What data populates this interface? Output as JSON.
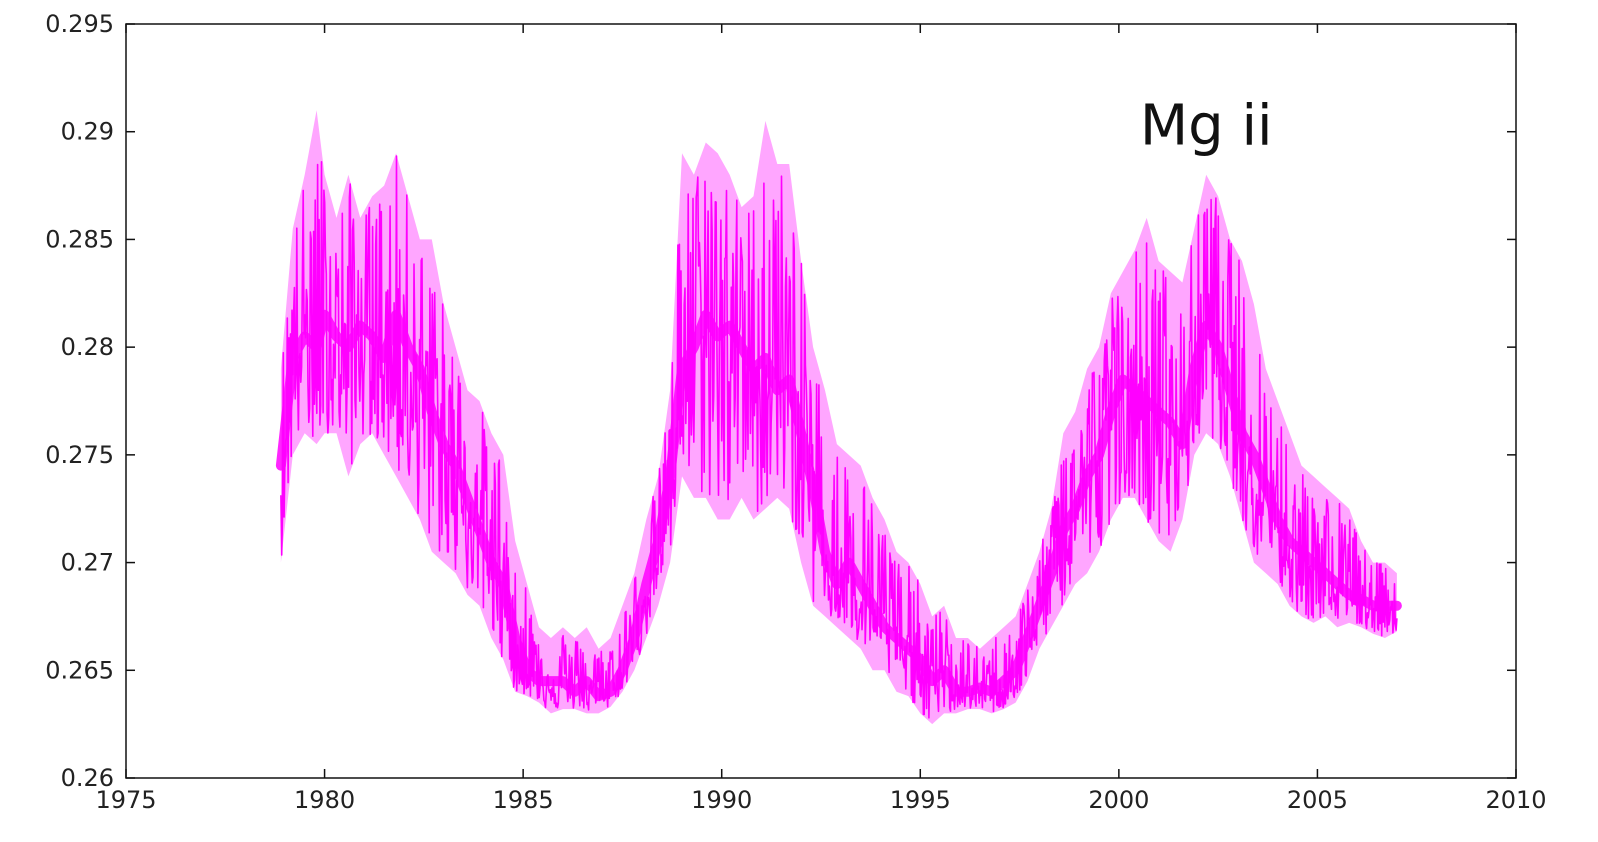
{
  "chart_data": {
    "type": "line",
    "title": "",
    "xlabel": "",
    "ylabel": "",
    "xlim": [
      1975,
      2010
    ],
    "ylim": [
      0.26,
      0.295
    ],
    "grid": false,
    "legend": "none",
    "annotations": [
      {
        "text": "Mg ii",
        "x": 2002.2,
        "y": 0.2894
      }
    ],
    "x_ticks": [
      {
        "value": 1975,
        "label": "1975"
      },
      {
        "value": 1980,
        "label": "1980"
      },
      {
        "value": 1985,
        "label": "1985"
      },
      {
        "value": 1990,
        "label": "1990"
      },
      {
        "value": 1995,
        "label": "1995"
      },
      {
        "value": 2000,
        "label": "2000"
      },
      {
        "value": 2005,
        "label": "2005"
      },
      {
        "value": 2010,
        "label": "2010"
      }
    ],
    "y_ticks": [
      {
        "value": 0.26,
        "label": "0.26"
      },
      {
        "value": 0.265,
        "label": "0.265"
      },
      {
        "value": 0.27,
        "label": "0.27"
      },
      {
        "value": 0.275,
        "label": "0.275"
      },
      {
        "value": 0.28,
        "label": "0.28"
      },
      {
        "value": 0.285,
        "label": "0.285"
      },
      {
        "value": 0.29,
        "label": "0.29"
      },
      {
        "value": 0.295,
        "label": "0.295"
      }
    ],
    "series": [
      {
        "color": "#ff00ff",
        "x": [
          1978.9,
          1979.2,
          1979.5,
          1979.8,
          1980.0,
          1980.3,
          1980.6,
          1980.9,
          1981.2,
          1981.5,
          1981.8,
          1982.1,
          1982.4,
          1982.7,
          1983.0,
          1983.3,
          1983.6,
          1983.9,
          1984.2,
          1984.5,
          1984.8,
          1985.1,
          1985.4,
          1985.7,
          1986.0,
          1986.3,
          1986.6,
          1986.9,
          1987.2,
          1987.5,
          1987.8,
          1988.1,
          1988.4,
          1988.7,
          1989.0,
          1989.3,
          1989.6,
          1989.9,
          1990.2,
          1990.5,
          1990.8,
          1991.1,
          1991.4,
          1991.7,
          1992.0,
          1992.3,
          1992.6,
          1992.9,
          1993.2,
          1993.5,
          1993.8,
          1994.1,
          1994.4,
          1994.7,
          1995.0,
          1995.3,
          1995.6,
          1995.9,
          1996.2,
          1996.5,
          1996.8,
          1997.1,
          1997.4,
          1997.7,
          1998.0,
          1998.3,
          1998.6,
          1998.9,
          1999.2,
          1999.5,
          1999.8,
          2000.1,
          2000.4,
          2000.7,
          2001.0,
          2001.3,
          2001.6,
          2001.9,
          2002.2,
          2002.5,
          2002.8,
          2003.1,
          2003.4,
          2003.7,
          2004.0,
          2004.3,
          2004.6,
          2004.9,
          2005.2,
          2005.5,
          2005.8,
          2006.1,
          2006.4,
          2006.7,
          2007.0
        ],
        "y": [
          0.2745,
          0.2795,
          0.2805,
          0.28,
          0.2815,
          0.2805,
          0.28,
          0.281,
          0.2805,
          0.2795,
          0.2815,
          0.28,
          0.279,
          0.277,
          0.2755,
          0.2745,
          0.273,
          0.2715,
          0.27,
          0.269,
          0.2665,
          0.265,
          0.2645,
          0.2645,
          0.2645,
          0.264,
          0.2645,
          0.2638,
          0.264,
          0.265,
          0.2665,
          0.269,
          0.271,
          0.274,
          0.279,
          0.28,
          0.2815,
          0.2805,
          0.281,
          0.28,
          0.279,
          0.2795,
          0.278,
          0.2785,
          0.276,
          0.2735,
          0.2705,
          0.269,
          0.27,
          0.269,
          0.268,
          0.267,
          0.2665,
          0.266,
          0.2655,
          0.2645,
          0.265,
          0.264,
          0.264,
          0.2642,
          0.264,
          0.2645,
          0.265,
          0.2665,
          0.268,
          0.2695,
          0.2715,
          0.2725,
          0.274,
          0.275,
          0.277,
          0.2785,
          0.278,
          0.2775,
          0.277,
          0.2765,
          0.2755,
          0.279,
          0.281,
          0.28,
          0.278,
          0.276,
          0.275,
          0.2735,
          0.272,
          0.271,
          0.2705,
          0.27,
          0.2695,
          0.269,
          0.2685,
          0.2683,
          0.268,
          0.268,
          0.268
        ],
        "min": [
          0.27,
          0.275,
          0.276,
          0.2755,
          0.276,
          0.276,
          0.274,
          0.2755,
          0.276,
          0.275,
          0.274,
          0.273,
          0.272,
          0.2705,
          0.27,
          0.2695,
          0.2685,
          0.268,
          0.2665,
          0.2655,
          0.264,
          0.2638,
          0.2635,
          0.263,
          0.2632,
          0.2632,
          0.263,
          0.263,
          0.2633,
          0.264,
          0.265,
          0.2665,
          0.268,
          0.27,
          0.274,
          0.273,
          0.273,
          0.272,
          0.272,
          0.273,
          0.272,
          0.2725,
          0.273,
          0.2725,
          0.27,
          0.268,
          0.2675,
          0.267,
          0.2665,
          0.266,
          0.265,
          0.265,
          0.264,
          0.2638,
          0.263,
          0.2625,
          0.263,
          0.263,
          0.2632,
          0.2632,
          0.263,
          0.2632,
          0.2635,
          0.2645,
          0.266,
          0.267,
          0.268,
          0.269,
          0.2695,
          0.2705,
          0.272,
          0.273,
          0.273,
          0.272,
          0.271,
          0.2705,
          0.272,
          0.275,
          0.276,
          0.2755,
          0.274,
          0.272,
          0.27,
          0.2695,
          0.269,
          0.268,
          0.2675,
          0.2672,
          0.2675,
          0.267,
          0.2672,
          0.267,
          0.2667,
          0.2665,
          0.2668
        ],
        "max": [
          0.279,
          0.2855,
          0.288,
          0.291,
          0.288,
          0.286,
          0.288,
          0.286,
          0.287,
          0.2875,
          0.289,
          0.287,
          0.285,
          0.285,
          0.282,
          0.28,
          0.278,
          0.2775,
          0.276,
          0.275,
          0.271,
          0.269,
          0.267,
          0.2665,
          0.267,
          0.2665,
          0.267,
          0.266,
          0.2665,
          0.268,
          0.2695,
          0.272,
          0.274,
          0.278,
          0.289,
          0.288,
          0.2895,
          0.289,
          0.288,
          0.2865,
          0.287,
          0.2905,
          0.2885,
          0.2885,
          0.284,
          0.28,
          0.278,
          0.2755,
          0.275,
          0.2745,
          0.273,
          0.272,
          0.2705,
          0.27,
          0.269,
          0.2675,
          0.268,
          0.2665,
          0.2665,
          0.266,
          0.2665,
          0.267,
          0.2675,
          0.269,
          0.2705,
          0.2725,
          0.276,
          0.277,
          0.279,
          0.28,
          0.2825,
          0.2835,
          0.2845,
          0.286,
          0.284,
          0.2835,
          0.283,
          0.2855,
          0.288,
          0.287,
          0.285,
          0.284,
          0.282,
          0.279,
          0.2775,
          0.276,
          0.2745,
          0.274,
          0.2735,
          0.273,
          0.2725,
          0.271,
          0.27,
          0.27,
          0.2695
        ]
      }
    ]
  }
}
